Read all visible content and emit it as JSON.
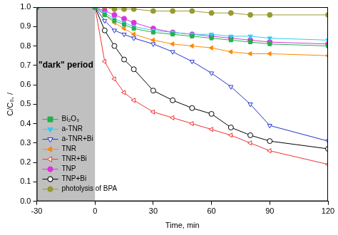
{
  "chart_data": {
    "type": "line",
    "x_label": "Time, min",
    "y_label": "C/C₀, /",
    "xlim": [
      -30,
      120
    ],
    "xticks": [
      -30,
      0,
      30,
      60,
      90,
      120
    ],
    "ylim": [
      0,
      1.0
    ],
    "yticks": [
      {
        "value": 0,
        "label": "0.0"
      },
      {
        "value": 0.1,
        "label": "0.1"
      },
      {
        "value": 0.2,
        "label": "0.2"
      },
      {
        "value": 0.3,
        "label": "0.3"
      },
      {
        "value": 0.4,
        "label": "0.4"
      },
      {
        "value": 0.5,
        "label": "0.5"
      },
      {
        "value": 0.6,
        "label": "0.6"
      },
      {
        "value": 0.7,
        "label": "0.7"
      },
      {
        "value": 0.8,
        "label": "0.8"
      },
      {
        "value": 0.9,
        "label": "0.9"
      },
      {
        "value": 1.0,
        "label": "1.0"
      }
    ],
    "grid": false,
    "legend": "lower left",
    "annotations": [
      {
        "text": "\"dark\" period",
        "x_range": [
          -30,
          0
        ]
      }
    ],
    "x": [
      -30,
      0,
      5,
      10,
      15,
      20,
      30,
      40,
      50,
      60,
      70,
      80,
      90,
      120
    ],
    "series": [
      {
        "name": "Bi₂O₃",
        "color": "#22b14c",
        "marker": "square",
        "values": [
          1.0,
          1.0,
          0.96,
          0.93,
          0.91,
          0.89,
          0.87,
          0.86,
          0.85,
          0.84,
          0.83,
          0.82,
          0.81,
          0.8
        ]
      },
      {
        "name": "a-TNR",
        "color": "#33ccee",
        "marker": "triangle-down",
        "values": [
          1.0,
          1.0,
          0.97,
          0.94,
          0.92,
          0.9,
          0.88,
          0.87,
          0.86,
          0.86,
          0.85,
          0.85,
          0.84,
          0.83
        ]
      },
      {
        "name": "a-TNR+Bi",
        "color": "#2233cc",
        "marker": "triangle-down-open",
        "values": [
          1.0,
          1.0,
          0.93,
          0.88,
          0.86,
          0.84,
          0.81,
          0.77,
          0.72,
          0.66,
          0.59,
          0.5,
          0.39,
          0.31
        ]
      },
      {
        "name": "TNR",
        "color": "#ff8800",
        "marker": "triangle-left",
        "values": [
          1.0,
          1.0,
          0.96,
          0.92,
          0.89,
          0.86,
          0.83,
          0.81,
          0.8,
          0.79,
          0.77,
          0.76,
          0.76,
          0.75
        ]
      },
      {
        "name": "TNR+Bi",
        "color": "#ee3333",
        "marker": "triangle-left-open",
        "values": [
          1.0,
          1.0,
          0.72,
          0.63,
          0.56,
          0.52,
          0.46,
          0.43,
          0.4,
          0.37,
          0.34,
          0.3,
          0.26,
          0.19
        ]
      },
      {
        "name": "TNP",
        "color": "#dd33dd",
        "marker": "circle",
        "values": [
          1.0,
          1.0,
          0.98,
          0.96,
          0.94,
          0.92,
          0.89,
          0.87,
          0.86,
          0.85,
          0.84,
          0.83,
          0.82,
          0.81
        ]
      },
      {
        "name": "TNP+Bi",
        "color": "#000000",
        "marker": "circle-open",
        "values": [
          1.0,
          1.0,
          0.88,
          0.8,
          0.73,
          0.68,
          0.57,
          0.52,
          0.48,
          0.45,
          0.38,
          0.34,
          0.31,
          0.27
        ]
      },
      {
        "name": "photolysis of BPA",
        "color": "#999933",
        "marker": "circle",
        "values": [
          1.0,
          1.0,
          1.0,
          0.99,
          0.99,
          0.99,
          0.98,
          0.98,
          0.98,
          0.97,
          0.97,
          0.96,
          0.96,
          0.96
        ]
      }
    ]
  }
}
